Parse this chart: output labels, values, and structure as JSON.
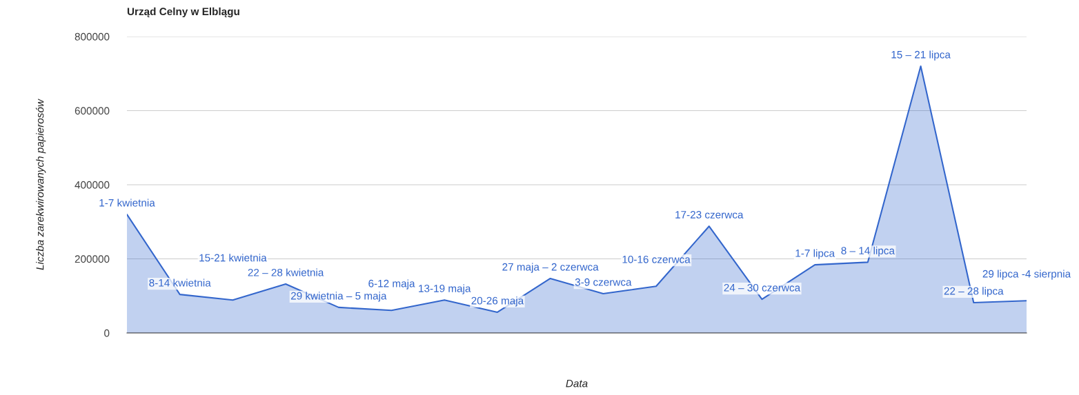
{
  "chart_data": {
    "type": "area",
    "title": "Urząd Celny w Elblągu",
    "xlabel": "Data",
    "ylabel": "Liczba zarekwirowanych papierosów",
    "categories": [
      "1-7 kwietnia",
      "8-14 kwietnia",
      "15-21 kwietnia",
      "22 – 28 kwietnia",
      "29 kwietnia – 5 maja",
      "6-12 maja",
      "13-19 maja",
      "20-26 maja",
      "27 maja – 2 czerwca",
      "3-9 czerwca",
      "10-16 czerwca",
      "17-23 czerwca",
      "24 – 30 czerwca",
      "1-7 lipca",
      "8 – 14 lipca",
      "15 – 21 lipca",
      "22 – 28 lipca",
      "29 lipca -4 sierpnia"
    ],
    "series": [
      {
        "color": "#3366cc",
        "values": [
          320000,
          104000,
          89000,
          132000,
          69000,
          61000,
          89000,
          56000,
          147000,
          106000,
          126000,
          288000,
          91000,
          184000,
          191000,
          720000,
          82000,
          87000
        ]
      }
    ],
    "ylim": [
      0,
      800000
    ],
    "yticks": [
      0,
      200000,
      400000,
      600000,
      800000
    ],
    "grid": "y"
  }
}
